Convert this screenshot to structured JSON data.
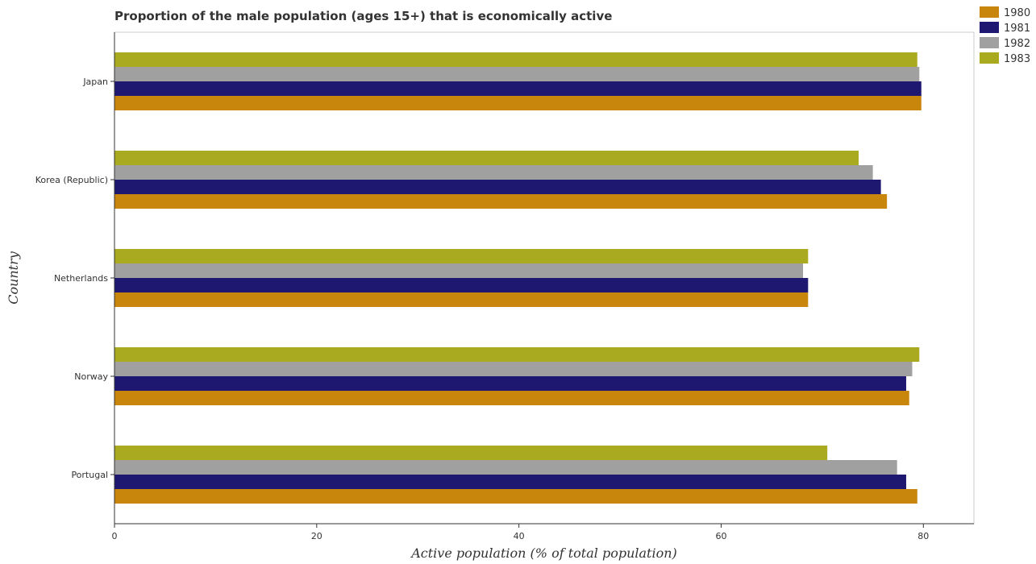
{
  "chart_data": {
    "type": "bar",
    "orientation": "horizontal",
    "title": "Proportion of the male population (ages 15+) that is economically active",
    "xlabel": "Active population (% of total population)",
    "ylabel": "Country",
    "xlim": [
      0,
      85
    ],
    "xticks": [
      0,
      20,
      40,
      60,
      80
    ],
    "categories": [
      "Japan",
      "Korea (Republic)",
      "Netherlands",
      "Norway",
      "Portugal"
    ],
    "series": [
      {
        "name": "1980",
        "color": "#c8860d",
        "values": [
          79.8,
          76.4,
          68.6,
          78.6,
          79.4
        ]
      },
      {
        "name": "1981",
        "color": "#1f1870",
        "values": [
          79.8,
          75.8,
          68.6,
          78.3,
          78.3
        ]
      },
      {
        "name": "1982",
        "color": "#a0a0a0",
        "values": [
          79.6,
          75.0,
          68.1,
          78.9,
          77.4
        ]
      },
      {
        "name": "1983",
        "color": "#aaaa20",
        "values": [
          79.4,
          73.6,
          68.6,
          79.6,
          70.5
        ]
      }
    ],
    "grid": false,
    "legend_position": "top-right"
  }
}
